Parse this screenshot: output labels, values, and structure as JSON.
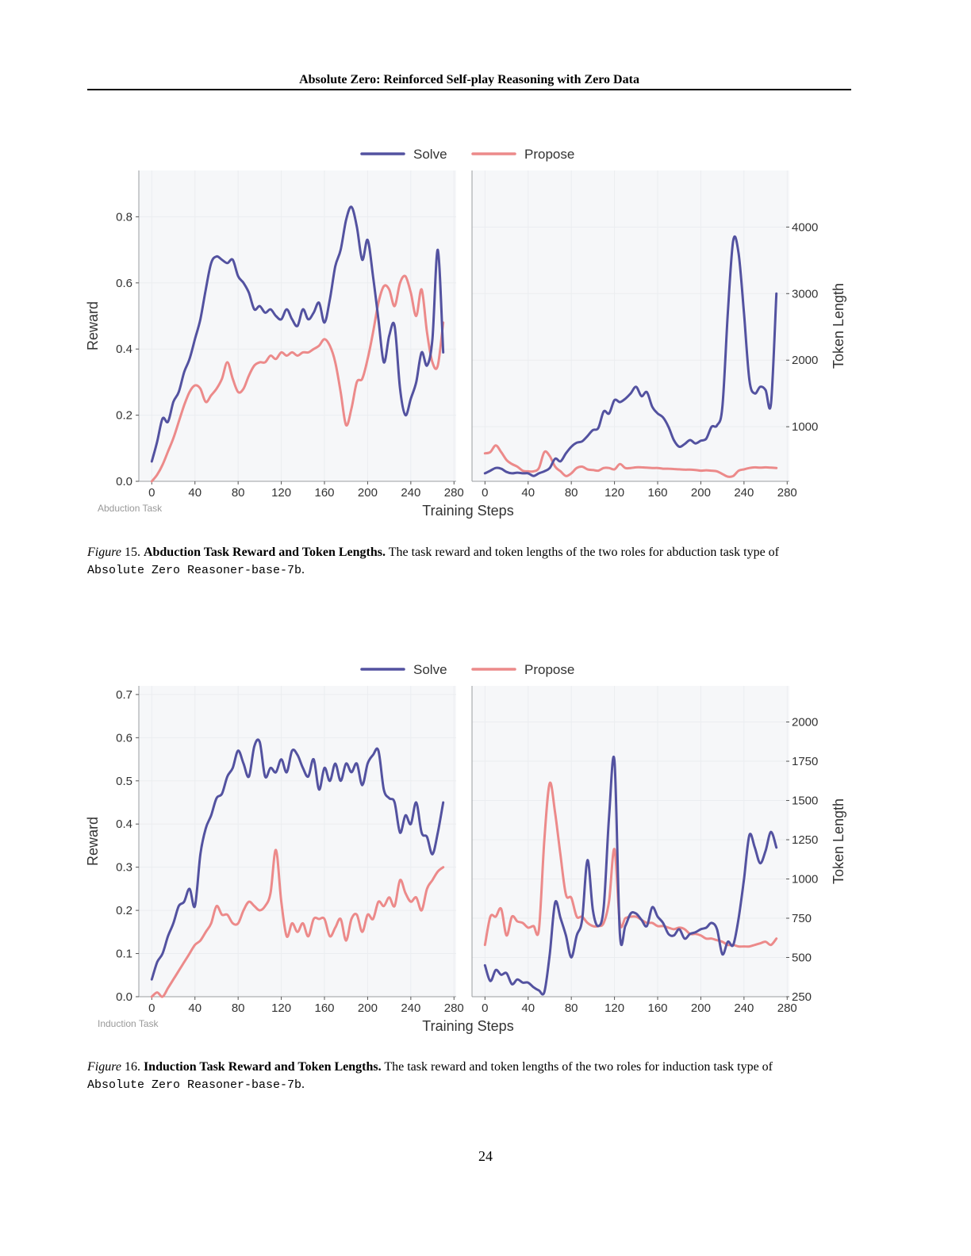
{
  "running_head": "Absolute Zero: Reinforced Self-play Reasoning with Zero Data",
  "page_number": "24",
  "colors": {
    "solve": "#5352a0",
    "propose": "#ec8a8a",
    "panel_bg": "#f6f7f9"
  },
  "figures": [
    {
      "caption_label": "Figure",
      "caption_number": "15.",
      "caption_title": "Abduction Task Reward and Token Lengths.",
      "caption_text": "The task reward and token lengths of the two roles for abduction task type of",
      "caption_code": "Absolute Zero Reasoner-base-7b",
      "caption_end": "."
    },
    {
      "caption_label": "Figure",
      "caption_number": "16.",
      "caption_title": "Induction Task Reward and Token Lengths.",
      "caption_text": "The task reward and token lengths of the two roles for induction task type of",
      "caption_code": "Absolute Zero Reasoner-base-7b",
      "caption_end": "."
    }
  ],
  "chart_data": [
    {
      "type": "line",
      "panel": "reward",
      "figure": 15,
      "corner_label": "Abduction Task",
      "ylabel": "Reward",
      "xlabel": "Training Steps",
      "legend": [
        "Solve",
        "Propose"
      ],
      "legend_position": "top-center",
      "grid": true,
      "xlim": [
        -12,
        282
      ],
      "ylim": [
        0,
        0.94
      ],
      "xticks": [
        0,
        40,
        80,
        120,
        160,
        200,
        240,
        280
      ],
      "yticks": [
        0.0,
        0.2,
        0.4,
        0.6,
        0.8
      ],
      "ytick_labels": [
        "0.0",
        "0.2",
        "0.4",
        "0.6",
        "0.8"
      ],
      "series": [
        {
          "name": "Solve",
          "x": [
            0,
            5,
            10,
            15,
            20,
            25,
            30,
            35,
            40,
            45,
            50,
            55,
            60,
            65,
            70,
            75,
            80,
            85,
            90,
            95,
            100,
            105,
            110,
            115,
            120,
            125,
            130,
            135,
            140,
            145,
            150,
            155,
            160,
            165,
            170,
            175,
            180,
            185,
            190,
            195,
            200,
            205,
            210,
            215,
            220,
            225,
            230,
            235,
            240,
            245,
            250,
            255,
            260,
            265,
            270
          ],
          "y": [
            0.06,
            0.12,
            0.19,
            0.18,
            0.24,
            0.27,
            0.33,
            0.37,
            0.43,
            0.49,
            0.58,
            0.66,
            0.68,
            0.67,
            0.66,
            0.67,
            0.62,
            0.6,
            0.57,
            0.52,
            0.53,
            0.51,
            0.52,
            0.5,
            0.49,
            0.52,
            0.49,
            0.47,
            0.52,
            0.49,
            0.51,
            0.54,
            0.48,
            0.55,
            0.65,
            0.7,
            0.79,
            0.83,
            0.77,
            0.67,
            0.73,
            0.62,
            0.49,
            0.36,
            0.44,
            0.47,
            0.28,
            0.2,
            0.25,
            0.3,
            0.39,
            0.35,
            0.43,
            0.7,
            0.39
          ]
        },
        {
          "name": "Propose",
          "x": [
            0,
            5,
            10,
            15,
            20,
            25,
            30,
            35,
            40,
            45,
            50,
            55,
            60,
            65,
            70,
            75,
            80,
            85,
            90,
            95,
            100,
            105,
            110,
            115,
            120,
            125,
            130,
            135,
            140,
            145,
            150,
            155,
            160,
            165,
            170,
            175,
            180,
            185,
            190,
            195,
            200,
            205,
            210,
            215,
            220,
            225,
            230,
            235,
            240,
            245,
            250,
            255,
            260,
            265,
            270
          ],
          "y": [
            0.0,
            0.02,
            0.05,
            0.09,
            0.13,
            0.18,
            0.23,
            0.27,
            0.29,
            0.28,
            0.24,
            0.26,
            0.28,
            0.31,
            0.36,
            0.31,
            0.27,
            0.28,
            0.32,
            0.35,
            0.36,
            0.36,
            0.38,
            0.37,
            0.39,
            0.38,
            0.39,
            0.38,
            0.39,
            0.39,
            0.4,
            0.41,
            0.43,
            0.41,
            0.36,
            0.27,
            0.17,
            0.22,
            0.3,
            0.31,
            0.37,
            0.45,
            0.54,
            0.59,
            0.58,
            0.53,
            0.6,
            0.62,
            0.57,
            0.5,
            0.58,
            0.45,
            0.36,
            0.35,
            0.48
          ]
        }
      ]
    },
    {
      "type": "line",
      "panel": "token_length",
      "figure": 15,
      "ylabel": "Token Length",
      "xlabel": "Training Steps",
      "grid": true,
      "xlim": [
        -12,
        282
      ],
      "ylim": [
        180,
        4850
      ],
      "xticks": [
        0,
        40,
        80,
        120,
        160,
        200,
        240,
        280
      ],
      "yticks": [
        1000,
        2000,
        3000,
        4000
      ],
      "ytick_labels": [
        "1000",
        "2000",
        "3000",
        "4000"
      ],
      "series": [
        {
          "name": "Solve",
          "x": [
            0,
            5,
            10,
            15,
            20,
            25,
            30,
            35,
            40,
            45,
            50,
            55,
            60,
            65,
            70,
            75,
            80,
            85,
            90,
            95,
            100,
            105,
            110,
            115,
            120,
            125,
            130,
            135,
            140,
            145,
            150,
            155,
            160,
            165,
            170,
            175,
            180,
            185,
            190,
            195,
            200,
            205,
            210,
            215,
            220,
            225,
            230,
            235,
            240,
            245,
            250,
            255,
            260,
            265,
            270
          ],
          "y": [
            300,
            340,
            380,
            370,
            320,
            300,
            310,
            300,
            300,
            260,
            300,
            330,
            380,
            520,
            480,
            600,
            700,
            760,
            780,
            860,
            950,
            980,
            1230,
            1200,
            1400,
            1370,
            1420,
            1500,
            1600,
            1460,
            1520,
            1300,
            1200,
            1140,
            1000,
            800,
            700,
            740,
            800,
            750,
            790,
            820,
            1000,
            1020,
            1300,
            2700,
            3800,
            3600,
            2700,
            1700,
            1500,
            1600,
            1550,
            1350,
            3000
          ]
        },
        {
          "name": "Propose",
          "x": [
            0,
            5,
            10,
            15,
            20,
            25,
            30,
            35,
            40,
            45,
            50,
            55,
            60,
            65,
            70,
            75,
            80,
            85,
            90,
            95,
            100,
            105,
            110,
            115,
            120,
            125,
            130,
            135,
            140,
            145,
            150,
            155,
            160,
            165,
            170,
            175,
            180,
            185,
            190,
            195,
            200,
            205,
            210,
            215,
            220,
            225,
            230,
            235,
            240,
            245,
            250,
            255,
            260,
            265,
            270
          ],
          "y": [
            600,
            620,
            720,
            620,
            500,
            440,
            400,
            340,
            330,
            330,
            380,
            620,
            560,
            400,
            330,
            260,
            300,
            380,
            400,
            360,
            350,
            340,
            380,
            380,
            360,
            440,
            380,
            380,
            390,
            390,
            385,
            380,
            380,
            370,
            370,
            365,
            360,
            355,
            355,
            350,
            340,
            345,
            340,
            330,
            290,
            250,
            260,
            340,
            360,
            380,
            390,
            385,
            390,
            385,
            380
          ]
        }
      ]
    },
    {
      "type": "line",
      "panel": "reward",
      "figure": 16,
      "corner_label": "Induction Task",
      "ylabel": "Reward",
      "xlabel": "Training Steps",
      "legend": [
        "Solve",
        "Propose"
      ],
      "legend_position": "top-center",
      "grid": true,
      "xlim": [
        -12,
        282
      ],
      "ylim": [
        0,
        0.72
      ],
      "xticks": [
        0,
        40,
        80,
        120,
        160,
        200,
        240,
        280
      ],
      "yticks": [
        0.0,
        0.1,
        0.2,
        0.3,
        0.4,
        0.5,
        0.6,
        0.7
      ],
      "ytick_labels": [
        "0.0",
        "0.1",
        "0.2",
        "0.3",
        "0.4",
        "0.5",
        "0.6",
        "0.7"
      ],
      "series": [
        {
          "name": "Solve",
          "x": [
            0,
            5,
            10,
            15,
            20,
            25,
            30,
            35,
            40,
            45,
            50,
            55,
            60,
            65,
            70,
            75,
            80,
            85,
            90,
            95,
            100,
            105,
            110,
            115,
            120,
            125,
            130,
            135,
            140,
            145,
            150,
            155,
            160,
            165,
            170,
            175,
            180,
            185,
            190,
            195,
            200,
            205,
            210,
            215,
            220,
            225,
            230,
            235,
            240,
            245,
            250,
            255,
            260,
            265,
            270
          ],
          "y": [
            0.04,
            0.08,
            0.1,
            0.14,
            0.17,
            0.21,
            0.22,
            0.25,
            0.21,
            0.33,
            0.39,
            0.42,
            0.46,
            0.47,
            0.51,
            0.53,
            0.57,
            0.54,
            0.51,
            0.58,
            0.59,
            0.51,
            0.53,
            0.52,
            0.55,
            0.52,
            0.57,
            0.56,
            0.53,
            0.51,
            0.55,
            0.48,
            0.53,
            0.5,
            0.54,
            0.5,
            0.54,
            0.52,
            0.54,
            0.49,
            0.54,
            0.56,
            0.57,
            0.48,
            0.46,
            0.45,
            0.38,
            0.42,
            0.4,
            0.45,
            0.38,
            0.37,
            0.33,
            0.38,
            0.45
          ]
        },
        {
          "name": "Propose",
          "x": [
            0,
            5,
            10,
            15,
            20,
            25,
            30,
            35,
            40,
            45,
            50,
            55,
            60,
            65,
            70,
            75,
            80,
            85,
            90,
            95,
            100,
            105,
            110,
            115,
            120,
            125,
            130,
            135,
            140,
            145,
            150,
            155,
            160,
            165,
            170,
            175,
            180,
            185,
            190,
            195,
            200,
            205,
            210,
            215,
            220,
            225,
            230,
            235,
            240,
            245,
            250,
            255,
            260,
            265,
            270
          ],
          "y": [
            0.0,
            0.01,
            0.0,
            0.02,
            0.04,
            0.06,
            0.08,
            0.1,
            0.12,
            0.13,
            0.15,
            0.17,
            0.21,
            0.19,
            0.19,
            0.17,
            0.17,
            0.2,
            0.22,
            0.21,
            0.2,
            0.21,
            0.24,
            0.34,
            0.22,
            0.14,
            0.17,
            0.15,
            0.17,
            0.14,
            0.18,
            0.18,
            0.18,
            0.14,
            0.16,
            0.18,
            0.13,
            0.18,
            0.19,
            0.15,
            0.19,
            0.18,
            0.22,
            0.21,
            0.23,
            0.21,
            0.27,
            0.24,
            0.22,
            0.23,
            0.2,
            0.25,
            0.27,
            0.29,
            0.3
          ]
        }
      ]
    },
    {
      "type": "line",
      "panel": "token_length",
      "figure": 16,
      "ylabel": "Token Length",
      "xlabel": "Training Steps",
      "grid": true,
      "xlim": [
        -12,
        282
      ],
      "ylim": [
        250,
        2230
      ],
      "xticks": [
        0,
        40,
        80,
        120,
        160,
        200,
        240,
        280
      ],
      "yticks": [
        250,
        500,
        750,
        1000,
        1250,
        1500,
        1750,
        2000
      ],
      "ytick_labels": [
        "250",
        "500",
        "750",
        "1000",
        "1250",
        "1500",
        "1750",
        "2000"
      ],
      "series": [
        {
          "name": "Solve",
          "x": [
            0,
            5,
            10,
            15,
            20,
            25,
            30,
            35,
            40,
            45,
            50,
            55,
            60,
            65,
            70,
            75,
            80,
            85,
            90,
            95,
            100,
            105,
            110,
            115,
            120,
            125,
            130,
            135,
            140,
            145,
            150,
            155,
            160,
            165,
            170,
            175,
            180,
            185,
            190,
            195,
            200,
            205,
            210,
            215,
            220,
            225,
            230,
            235,
            240,
            245,
            250,
            255,
            260,
            265,
            270
          ],
          "y": [
            450,
            350,
            420,
            390,
            400,
            330,
            360,
            340,
            340,
            310,
            290,
            280,
            520,
            850,
            750,
            640,
            500,
            640,
            740,
            1120,
            800,
            700,
            820,
            1400,
            1750,
            650,
            700,
            780,
            780,
            740,
            700,
            820,
            760,
            720,
            650,
            640,
            680,
            620,
            650,
            660,
            680,
            690,
            720,
            680,
            520,
            600,
            580,
            750,
            1000,
            1280,
            1200,
            1100,
            1180,
            1300,
            1200
          ]
        },
        {
          "name": "Propose",
          "x": [
            0,
            5,
            10,
            15,
            20,
            25,
            30,
            35,
            40,
            45,
            50,
            55,
            60,
            65,
            70,
            75,
            80,
            85,
            90,
            95,
            100,
            105,
            110,
            115,
            120,
            125,
            130,
            135,
            140,
            145,
            150,
            155,
            160,
            165,
            170,
            175,
            180,
            185,
            190,
            195,
            200,
            205,
            210,
            215,
            220,
            225,
            230,
            235,
            240,
            245,
            250,
            255,
            260,
            265,
            270
          ],
          "y": [
            580,
            760,
            760,
            810,
            640,
            760,
            730,
            720,
            690,
            700,
            680,
            1250,
            1610,
            1420,
            1150,
            900,
            880,
            760,
            760,
            720,
            700,
            700,
            720,
            860,
            1190,
            720,
            750,
            760,
            760,
            740,
            720,
            720,
            700,
            700,
            690,
            680,
            690,
            680,
            650,
            650,
            640,
            620,
            620,
            610,
            600,
            580,
            580,
            570,
            570,
            570,
            580,
            590,
            600,
            580,
            620
          ]
        }
      ]
    }
  ]
}
